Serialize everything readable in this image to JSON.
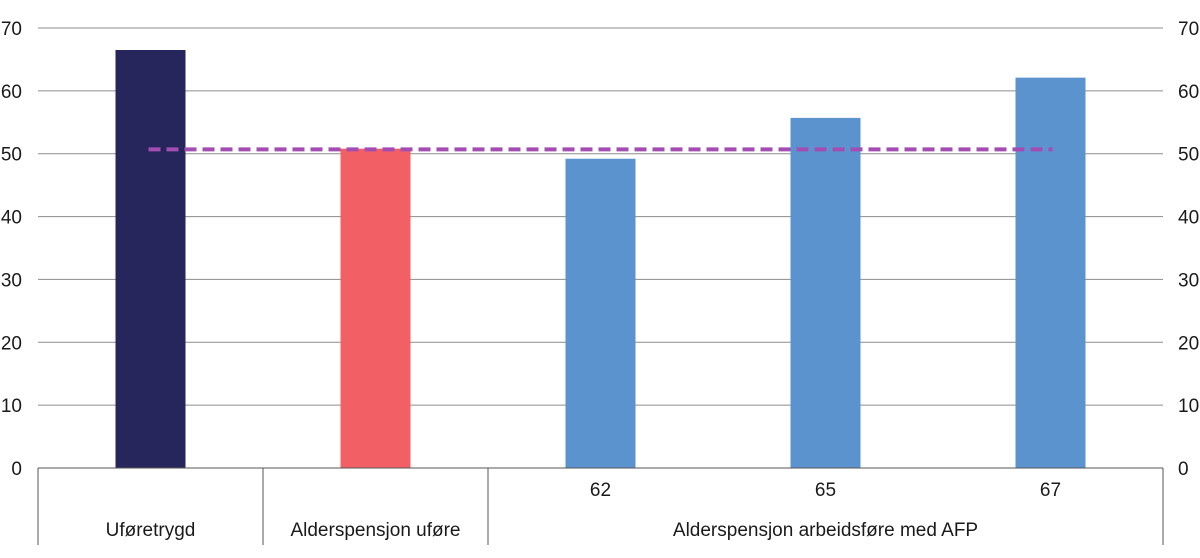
{
  "chart_data": {
    "type": "bar",
    "categories": [
      {
        "sub": "",
        "group": "Uføretrygd"
      },
      {
        "sub": "",
        "group": "Alderspensjon uføre"
      },
      {
        "sub": "62",
        "group": "Alderspensjon arbeidsføre med AFP"
      },
      {
        "sub": "65",
        "group": "Alderspensjon arbeidsføre med AFP"
      },
      {
        "sub": "67",
        "group": "Alderspensjon arbeidsføre med AFP"
      }
    ],
    "groups": [
      {
        "label": "Uføretrygd",
        "start": 0,
        "end": 0
      },
      {
        "label": "Alderspensjon uføre",
        "start": 1,
        "end": 1
      },
      {
        "label": "Alderspensjon arbeidsføre med AFP",
        "start": 2,
        "end": 4
      }
    ],
    "values": [
      66.5,
      50.8,
      49.2,
      55.7,
      62.1
    ],
    "colors": [
      "#26265c",
      "#f26065",
      "#5b93cf",
      "#5b93cf",
      "#5b93cf"
    ],
    "reference_line": {
      "value": 50.7,
      "color": "#a34db3",
      "style": "dashed"
    },
    "ylim": [
      0,
      70
    ],
    "yticks": [
      0,
      10,
      20,
      30,
      40,
      50,
      60,
      70
    ],
    "secondary_axis": true,
    "grid": true,
    "legend": "none"
  }
}
